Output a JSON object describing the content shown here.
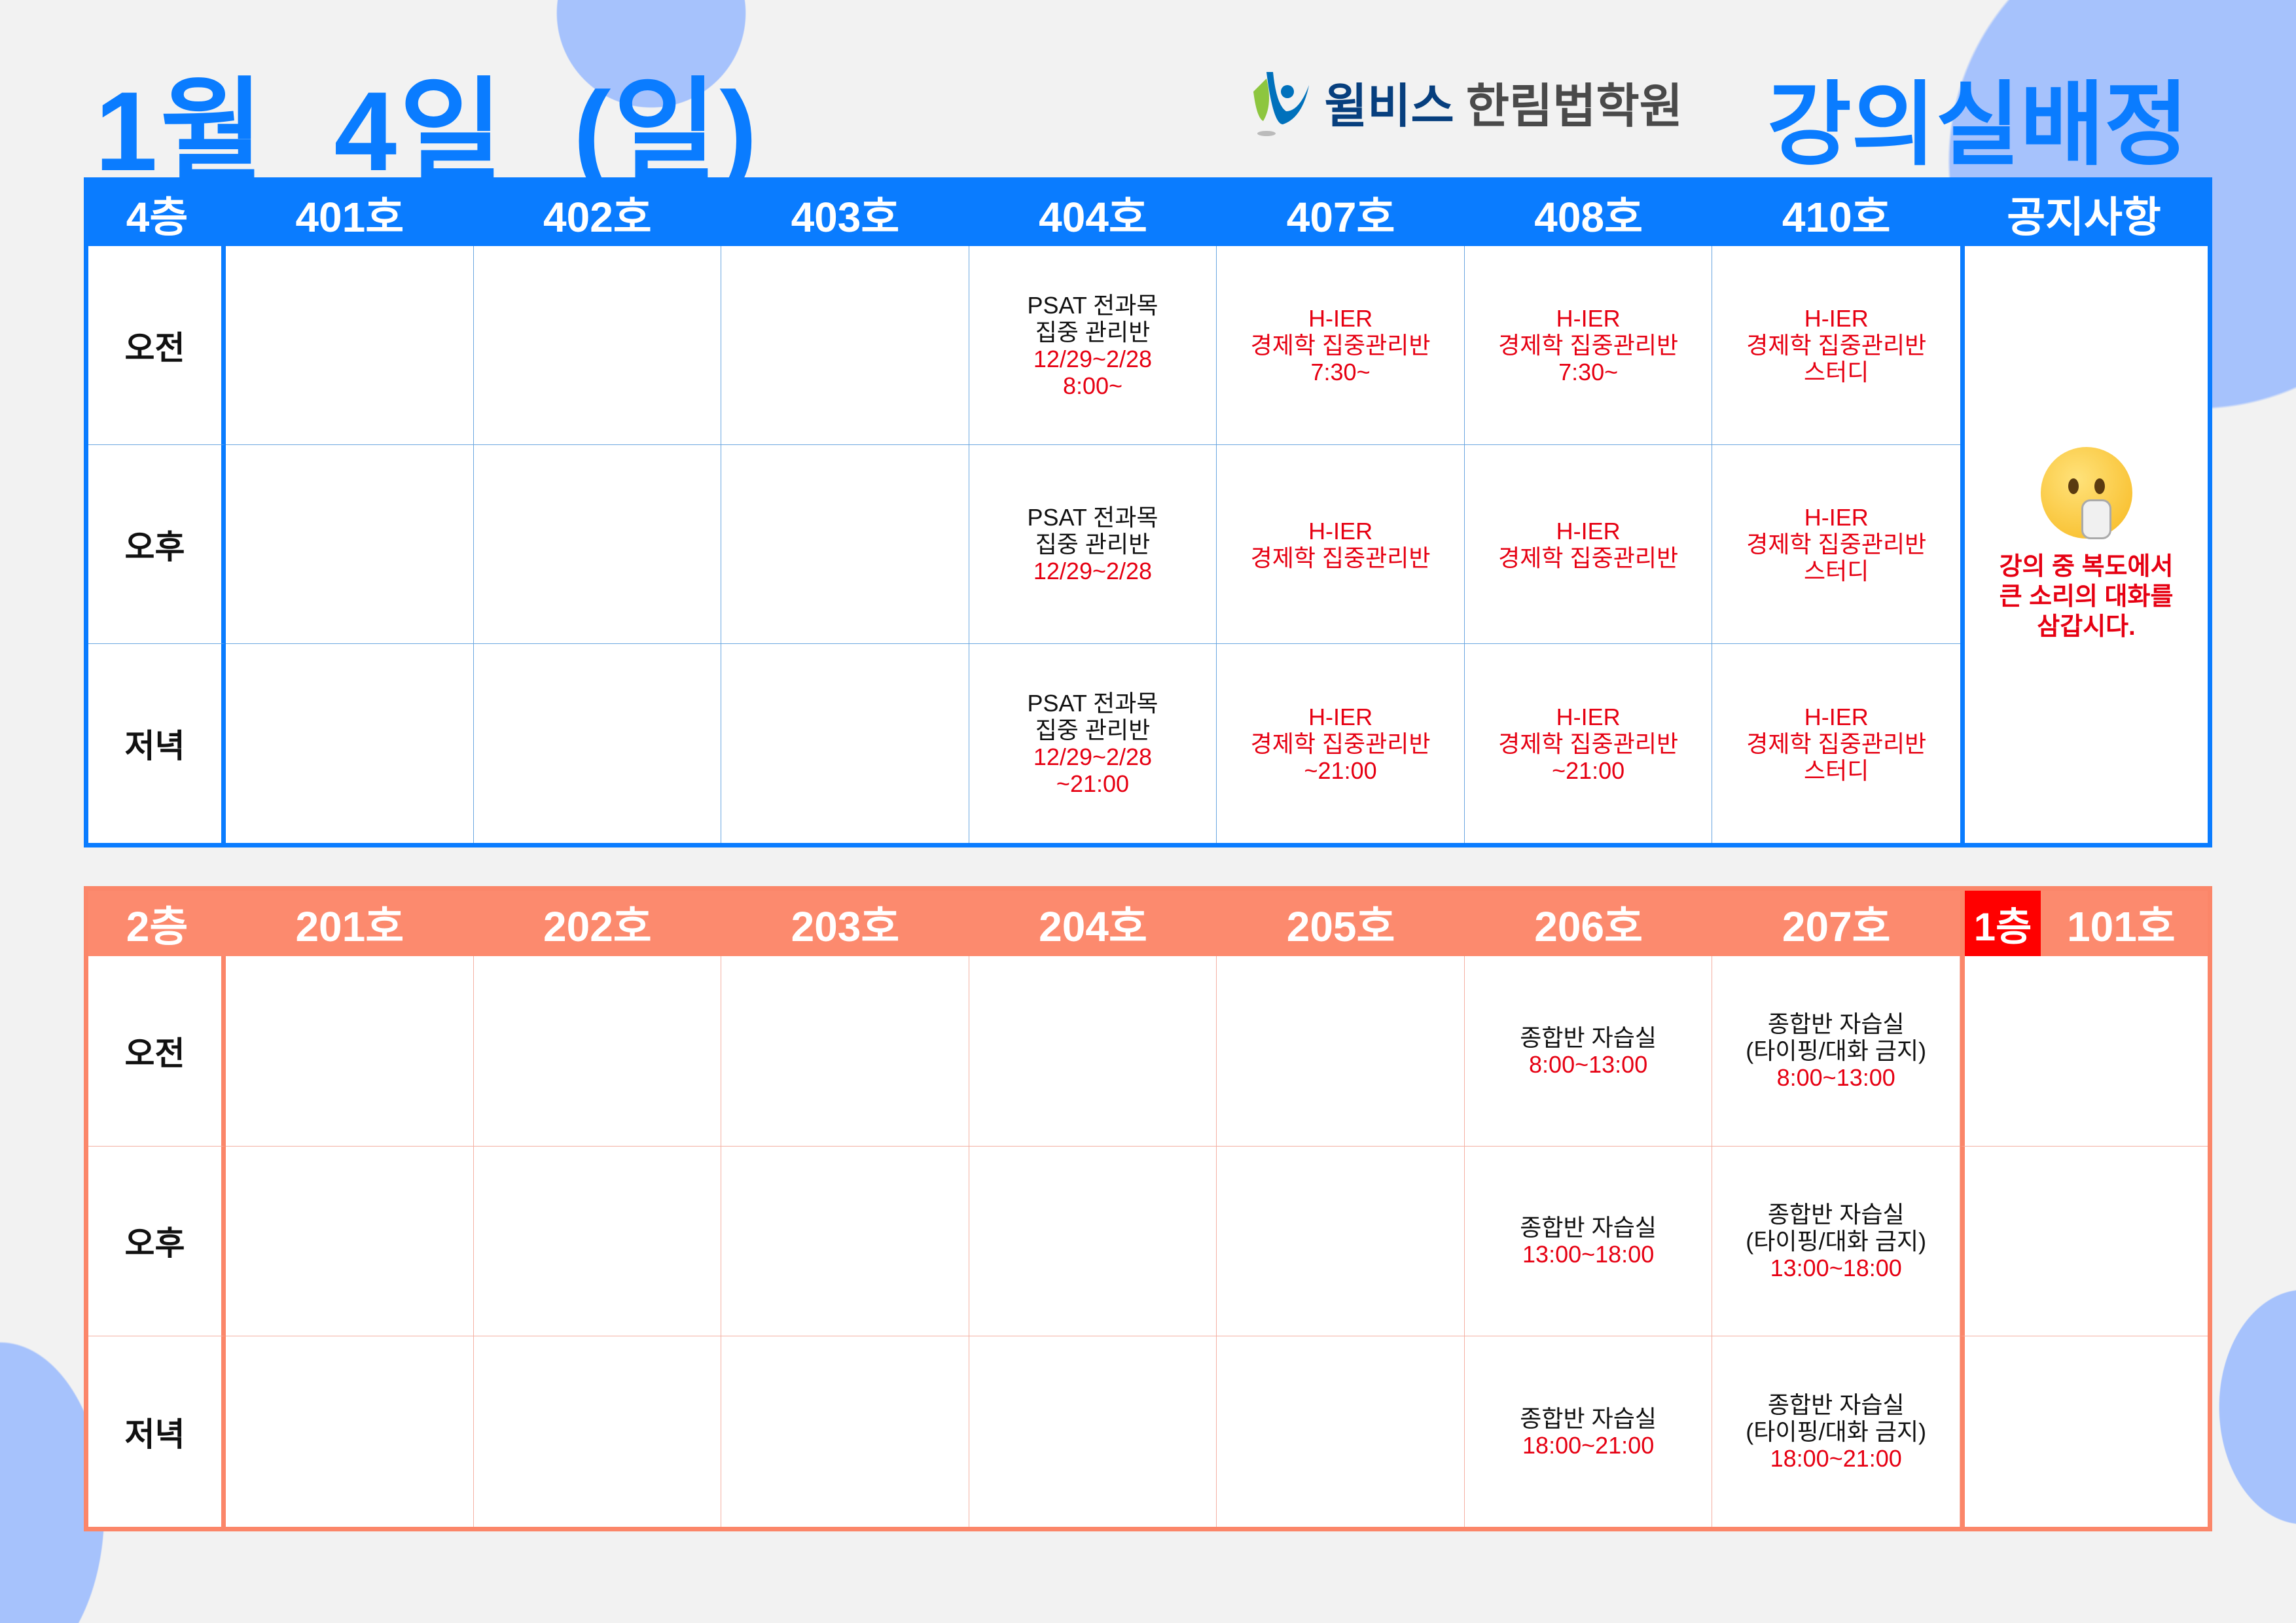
{
  "title": "1월  4일  (일)",
  "logo": {
    "brand_part1": "윌비스",
    "brand_part2": "한림법학원"
  },
  "heading": "강의실배정",
  "colors": {
    "blue": "#0a7cff",
    "salmon": "#fc8a6e",
    "red": "#e60012",
    "circle": "#a6c2fc"
  },
  "floor4": {
    "floor_label": "4층",
    "rooms": [
      "401호",
      "402호",
      "403호",
      "404호",
      "407호",
      "408호",
      "410호"
    ],
    "notice_header": "공지사항",
    "notice_icon": "shushing-face-icon",
    "notice_lines": [
      "강의 중 복도에서",
      "큰 소리의 대화를",
      "삼갑시다."
    ],
    "rows": [
      {
        "label": "오전",
        "cells": [
          [],
          [],
          [],
          [
            {
              "t": "PSAT 전과목",
              "c": "black"
            },
            {
              "t": "집중 관리반",
              "c": "black"
            },
            {
              "t": "12/29~2/28",
              "c": "red"
            },
            {
              "t": "8:00~",
              "c": "red"
            }
          ],
          [
            {
              "t": "H-IER",
              "c": "red"
            },
            {
              "t": "경제학 집중관리반",
              "c": "red"
            },
            {
              "t": "7:30~",
              "c": "red"
            }
          ],
          [
            {
              "t": "H-IER",
              "c": "red"
            },
            {
              "t": "경제학 집중관리반",
              "c": "red"
            },
            {
              "t": "7:30~",
              "c": "red"
            }
          ],
          [
            {
              "t": "H-IER",
              "c": "red"
            },
            {
              "t": "경제학 집중관리반",
              "c": "red"
            },
            {
              "t": "스터디",
              "c": "red"
            }
          ]
        ]
      },
      {
        "label": "오후",
        "cells": [
          [],
          [],
          [],
          [
            {
              "t": "PSAT 전과목",
              "c": "black"
            },
            {
              "t": "집중 관리반",
              "c": "black"
            },
            {
              "t": "12/29~2/28",
              "c": "red"
            }
          ],
          [
            {
              "t": "H-IER",
              "c": "red"
            },
            {
              "t": "경제학 집중관리반",
              "c": "red"
            }
          ],
          [
            {
              "t": "H-IER",
              "c": "red"
            },
            {
              "t": "경제학 집중관리반",
              "c": "red"
            }
          ],
          [
            {
              "t": "H-IER",
              "c": "red"
            },
            {
              "t": "경제학 집중관리반",
              "c": "red"
            },
            {
              "t": "스터디",
              "c": "red"
            }
          ]
        ]
      },
      {
        "label": "저녁",
        "cells": [
          [],
          [],
          [],
          [
            {
              "t": "PSAT 전과목",
              "c": "black"
            },
            {
              "t": "집중 관리반",
              "c": "black"
            },
            {
              "t": "12/29~2/28",
              "c": "red"
            },
            {
              "t": "~21:00",
              "c": "red"
            }
          ],
          [
            {
              "t": "H-IER",
              "c": "red"
            },
            {
              "t": "경제학 집중관리반",
              "c": "red"
            },
            {
              "t": "~21:00",
              "c": "red"
            }
          ],
          [
            {
              "t": "H-IER",
              "c": "red"
            },
            {
              "t": "경제학 집중관리반",
              "c": "red"
            },
            {
              "t": "~21:00",
              "c": "red"
            }
          ],
          [
            {
              "t": "H-IER",
              "c": "red"
            },
            {
              "t": "경제학 집중관리반",
              "c": "red"
            },
            {
              "t": "스터디",
              "c": "red"
            }
          ]
        ]
      }
    ]
  },
  "floor2": {
    "floor_label": "2층",
    "rooms": [
      "201호",
      "202호",
      "203호",
      "204호",
      "205호",
      "206호",
      "207호"
    ],
    "floor1_label": "1층",
    "floor1_room": "101호",
    "rows": [
      {
        "label": "오전",
        "cells": [
          [],
          [],
          [],
          [],
          [],
          [
            {
              "t": "종합반 자습실",
              "c": "black"
            },
            {
              "t": "8:00~13:00",
              "c": "red"
            }
          ],
          [
            {
              "t": "종합반 자습실",
              "c": "black"
            },
            {
              "t": "(타이핑/대화 금지)",
              "c": "black"
            },
            {
              "t": "8:00~13:00",
              "c": "red"
            }
          ],
          []
        ]
      },
      {
        "label": "오후",
        "cells": [
          [],
          [],
          [],
          [],
          [],
          [
            {
              "t": "종합반 자습실",
              "c": "black"
            },
            {
              "t": "13:00~18:00",
              "c": "red"
            }
          ],
          [
            {
              "t": "종합반 자습실",
              "c": "black"
            },
            {
              "t": "(타이핑/대화 금지)",
              "c": "black"
            },
            {
              "t": "13:00~18:00",
              "c": "red"
            }
          ],
          []
        ]
      },
      {
        "label": "저녁",
        "cells": [
          [],
          [],
          [],
          [],
          [],
          [
            {
              "t": "종합반 자습실",
              "c": "black"
            },
            {
              "t": "18:00~21:00",
              "c": "red"
            }
          ],
          [
            {
              "t": "종합반 자습실",
              "c": "black"
            },
            {
              "t": "(타이핑/대화 금지)",
              "c": "black"
            },
            {
              "t": "18:00~21:00",
              "c": "red"
            }
          ],
          []
        ]
      }
    ]
  }
}
